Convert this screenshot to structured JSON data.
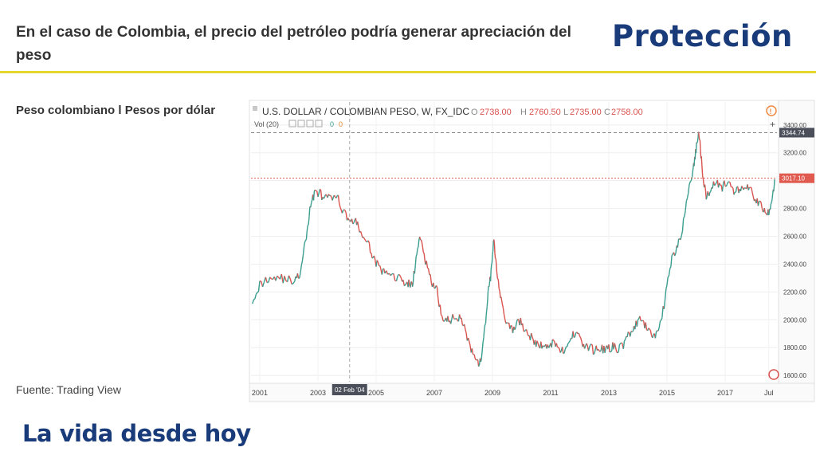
{
  "slide": {
    "title": "En el caso de Colombia, el precio del petróleo podría generar apreciación del peso",
    "logo": "Protección",
    "subtitle": "Peso colombiano l Pesos por dólar",
    "source": "Fuente: Trading View",
    "tagline": "La vida desde hoy",
    "accent_color": "#e3d82b",
    "brand_color": "#1a3b7a"
  },
  "chart_data": {
    "type": "line",
    "title": "U.S. DOLLAR / COLOMBIAN PESO, W, FX_IDC",
    "ohlc": {
      "o_label": "O",
      "o_value": "2738.00",
      "h_label": "H",
      "h_value": "2760.50",
      "l_label": "L",
      "l_value": "2735.00",
      "c_label": "C",
      "c_value": "2758.00"
    },
    "volume_label": "Vol (20)",
    "volume_value": "0",
    "volume_value2": "0",
    "x_ticks": [
      "2001",
      "2003",
      "2005",
      "2007",
      "2009",
      "2011",
      "2013",
      "2015",
      "2017",
      "Jul"
    ],
    "y_ticks": [
      "3400.00",
      "3200.00",
      "3000.00",
      "2800.00",
      "2600.00",
      "2400.00",
      "2200.00",
      "2000.00",
      "1800.00",
      "1600.00"
    ],
    "y_tick_values": [
      3400,
      3200,
      3000,
      2800,
      2600,
      2400,
      2200,
      2000,
      1800,
      1600
    ],
    "ylim": [
      1555,
      3565
    ],
    "xlim": [
      2000.7,
      2018.78
    ],
    "crosshair_price_label": "3344.74",
    "crosshair_price": 3344.74,
    "crosshair_date_label": "02 Feb '04",
    "crosshair_date": 2004.09,
    "last_price_label": "3017.10",
    "last_price": 3017.1,
    "up_color": "#3a9e8f",
    "down_color": "#d9534f",
    "series": [
      {
        "x": [
          2000.75,
          2001.0,
          2001.3,
          2001.6,
          2001.9,
          2002.2,
          2002.4,
          2002.6,
          2002.75,
          2002.9,
          2003.1,
          2003.3,
          2003.5,
          2003.7,
          2003.9,
          2004.1,
          2004.3,
          2004.5,
          2004.7,
          2004.9,
          2005.1,
          2005.3,
          2005.6,
          2005.9,
          2006.1,
          2006.25,
          2006.4,
          2006.55,
          2006.7,
          2006.9,
          2007.1,
          2007.3,
          2007.5,
          2007.7,
          2007.9,
          2008.1,
          2008.3,
          2008.45,
          2008.6,
          2008.75,
          2008.85,
          2008.95,
          2009.05,
          2009.15,
          2009.3,
          2009.5,
          2009.7,
          2009.9,
          2010.1,
          2010.3,
          2010.5,
          2010.7,
          2010.9,
          2011.1,
          2011.3,
          2011.5,
          2011.7,
          2011.9,
          2012.1,
          2012.3,
          2012.5,
          2012.7,
          2012.9,
          2013.1,
          2013.3,
          2013.5,
          2013.7,
          2013.9,
          2014.1,
          2014.3,
          2014.5,
          2014.7,
          2014.9,
          2015.1,
          2015.3,
          2015.5,
          2015.7,
          2015.9,
          2016.0,
          2016.1,
          2016.2,
          2016.35,
          2016.5,
          2016.7,
          2016.9,
          2017.1,
          2017.3,
          2017.5,
          2017.7,
          2017.9,
          2018.1,
          2018.3,
          2018.45,
          2018.6,
          2018.7
        ],
        "y": [
          2150,
          2250,
          2300,
          2310,
          2290,
          2280,
          2330,
          2600,
          2820,
          2930,
          2900,
          2870,
          2880,
          2860,
          2770,
          2720,
          2700,
          2620,
          2550,
          2460,
          2370,
          2330,
          2320,
          2280,
          2260,
          2250,
          2470,
          2610,
          2420,
          2270,
          2200,
          1980,
          2000,
          2010,
          2030,
          1900,
          1760,
          1680,
          1700,
          1950,
          2200,
          2330,
          2580,
          2360,
          2150,
          1960,
          1920,
          2000,
          1940,
          1880,
          1820,
          1820,
          1800,
          1850,
          1800,
          1760,
          1870,
          1930,
          1820,
          1800,
          1780,
          1800,
          1780,
          1810,
          1790,
          1820,
          1900,
          1950,
          2000,
          1940,
          1880,
          1920,
          2100,
          2400,
          2500,
          2600,
          2900,
          3080,
          3220,
          3350,
          3100,
          2870,
          2950,
          3000,
          2950,
          3000,
          2900,
          2950,
          2950,
          2920,
          2850,
          2800,
          2750,
          2830,
          3010
        ]
      }
    ]
  }
}
